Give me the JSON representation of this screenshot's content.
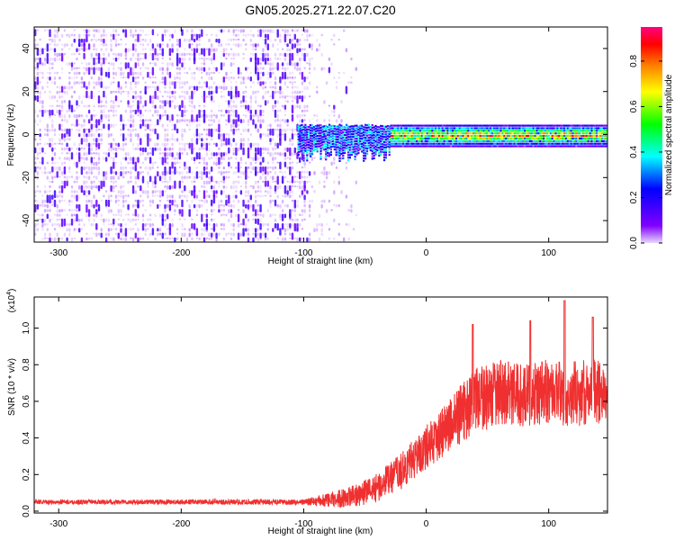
{
  "figure": {
    "title": "GN05.2025.271.22.07.C20"
  },
  "chart_data": [
    {
      "type": "heatmap",
      "name": "spectrogram",
      "xlabel": "Height of straight line (km)",
      "ylabel": "Frequency (Hz)",
      "xlim": [
        -320,
        148
      ],
      "ylim": [
        -50,
        50
      ],
      "xticks": [
        -300,
        -200,
        -100,
        0,
        100
      ],
      "yticks": [
        -40,
        -20,
        0,
        20,
        40
      ],
      "noise_region": {
        "x_range": [
          -320,
          -100
        ],
        "fade_range": [
          -100,
          -55
        ],
        "level": [
          0.05,
          0.15
        ]
      },
      "signal_band": {
        "x_range": [
          -105,
          148
        ],
        "center_freq": 0,
        "half_width": 5,
        "onset_spread_x": [
          -105,
          -30
        ],
        "onset_spread_low_freq": -12
      },
      "colorbar": {
        "label": "Normalized spectral amplitude",
        "range": [
          0,
          0.95
        ],
        "ticks": [
          0.0,
          0.2,
          0.4,
          0.6,
          0.8
        ],
        "tick_labels": [
          "0.0",
          "0.2",
          "0.4",
          "0.6",
          "0.8"
        ],
        "colormap": [
          "#ffffff",
          "#7f00ff",
          "#0000ff",
          "#00ffff",
          "#00ff00",
          "#ffff00",
          "#ff7f00",
          "#ff0000",
          "#ff0080"
        ]
      }
    },
    {
      "type": "line",
      "name": "snr",
      "xlabel": "Height of straight line (km)",
      "ylabel": "SNR (10 * v/v)",
      "y_multiplier_label": "(x10",
      "y_multiplier_exp": "4",
      "y_multiplier_close": ")",
      "xlim": [
        -320,
        148
      ],
      "ylim": [
        -0.01,
        1.17
      ],
      "xticks": [
        -300,
        -200,
        -100,
        0,
        100
      ],
      "yticks": [
        0.0,
        0.2,
        0.4,
        0.6,
        0.8,
        1.0
      ],
      "ytick_labels": [
        "0.0",
        "0.2",
        "0.4",
        "0.6",
        "0.8",
        "1.0"
      ],
      "series": [
        {
          "name": "SNR",
          "color": "#f03030",
          "x": [
            -320,
            -100,
            -80,
            -60,
            -40,
            -20,
            0,
            20,
            40,
            60,
            80,
            100,
            120,
            148
          ],
          "baseline": [
            0.05,
            0.05,
            0.06,
            0.08,
            0.13,
            0.22,
            0.35,
            0.48,
            0.6,
            0.65,
            0.63,
            0.66,
            0.64,
            0.66
          ],
          "noise": [
            0.012,
            0.015,
            0.04,
            0.06,
            0.08,
            0.1,
            0.12,
            0.15,
            0.18,
            0.18,
            0.17,
            0.18,
            0.18,
            0.18
          ],
          "peaks": [
            {
              "x": 38,
              "y": 1.02
            },
            {
              "x": 113,
              "y": 1.15
            },
            {
              "x": 136,
              "y": 1.06
            },
            {
              "x": 85,
              "y": 1.04
            }
          ]
        }
      ]
    }
  ]
}
